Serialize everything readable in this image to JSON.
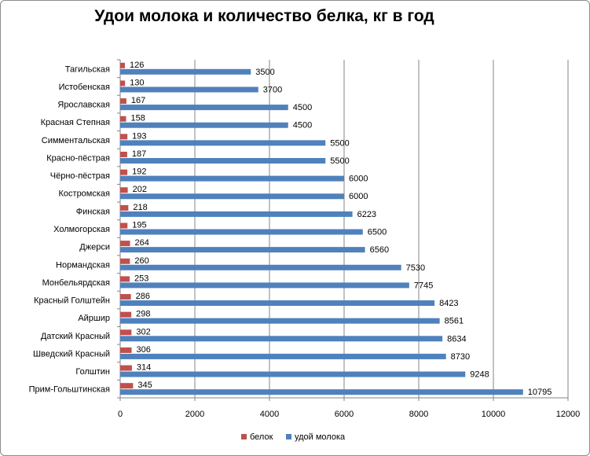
{
  "chart_data": {
    "type": "bar",
    "orientation": "horizontal",
    "title": "Удои молока и количество белка, кг в год",
    "categories": [
      "Тагильская",
      "Истобенская",
      "Ярославская",
      "Красная Степная",
      "Симментальская",
      "Красно-пёстрая",
      "Чёрно-пёстрая",
      "Костромская",
      "Финская",
      "Холмогорская",
      "Джерси",
      "Нормандская",
      "Монбельярдская",
      "Красный Голштейн",
      "Айршир",
      "Датский Красный",
      "Шведский Красный",
      "Голштин",
      "Прим-Гольштинская"
    ],
    "series": [
      {
        "name": "белок",
        "color": "#c0504d",
        "values": [
          126,
          130,
          167,
          158,
          193,
          187,
          192,
          202,
          218,
          195,
          264,
          260,
          253,
          286,
          298,
          302,
          306,
          314,
          345
        ]
      },
      {
        "name": "удой молока",
        "color": "#4f81bd",
        "values": [
          3500,
          3700,
          4500,
          4500,
          5500,
          5500,
          6000,
          6000,
          6223,
          6500,
          6560,
          7530,
          7745,
          8423,
          8561,
          8634,
          8730,
          9248,
          10795
        ]
      }
    ],
    "xlim": [
      0,
      12000
    ],
    "xticks": [
      0,
      2000,
      4000,
      6000,
      8000,
      10000,
      12000
    ],
    "grid": true,
    "legend_position": "bottom"
  }
}
